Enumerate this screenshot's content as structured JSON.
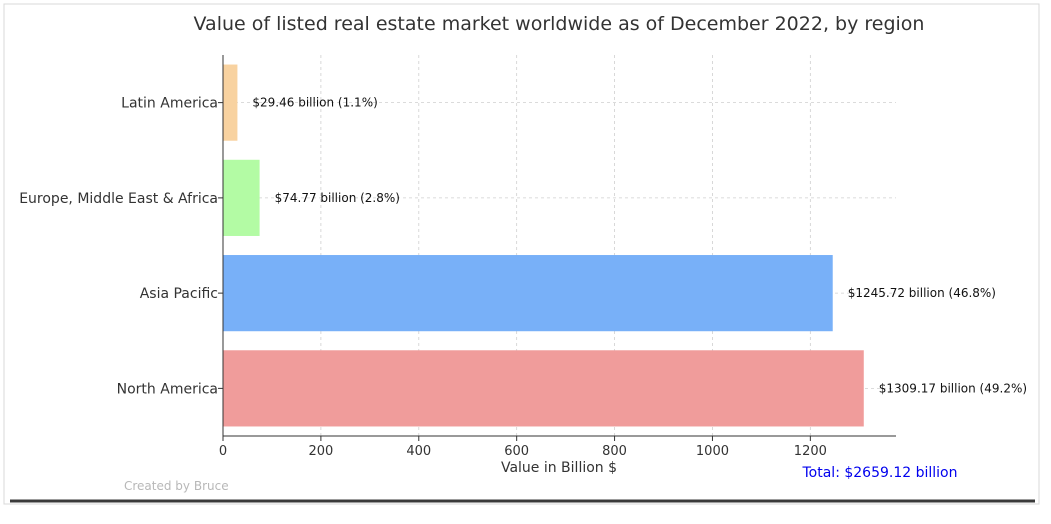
{
  "chart_data": {
    "type": "bar",
    "orientation": "horizontal",
    "title": "Value of listed real estate market worldwide as of December 2022, by region",
    "xlabel": "Value in Billion $",
    "ylabel": "",
    "xlim": [
      0,
      1375
    ],
    "xticks": [
      0,
      200,
      400,
      600,
      800,
      1000,
      1200
    ],
    "grid": true,
    "categories": [
      "North America",
      "Asia Pacific",
      "Europe, Middle East & Africa",
      "Latin America"
    ],
    "values": [
      1309.17,
      1245.72,
      74.77,
      29.46
    ],
    "colors": [
      "#f09c9b",
      "#78b0f8",
      "#b3fba4",
      "#f8d2a0"
    ],
    "data_labels": [
      "$1309.17 billion (49.2%)",
      "$1245.72 billion (46.8%)",
      "$74.77 billion (2.8%)",
      "$29.46 billion (1.1%)"
    ],
    "total_label": "Total: $2659.12 billion",
    "total_color": "#0000ee",
    "credit": "Created by Bruce"
  }
}
